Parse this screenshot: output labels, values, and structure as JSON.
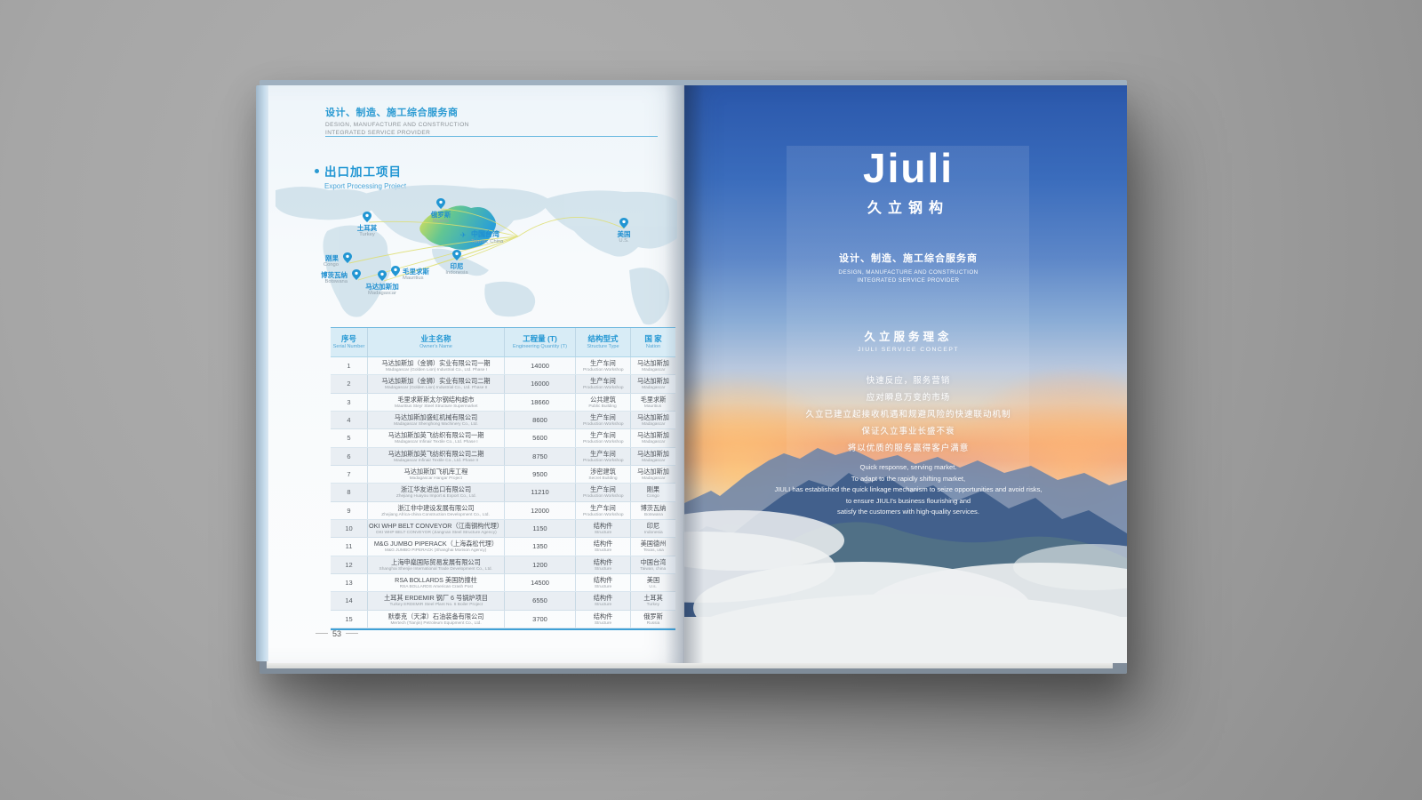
{
  "left_page": {
    "header": {
      "cn": "设计、制造、施工综合服务商",
      "en_line1": "DESIGN, MANUFACTURE AND CONSTRUCTION",
      "en_line2": "INTEGRATED SERVICE PROVIDER"
    },
    "section": {
      "cn": "出口加工项目",
      "en": "Export Processing Project"
    },
    "map": {
      "locations": [
        {
          "id": "russia",
          "cn": "俄罗斯",
          "en": "Russia"
        },
        {
          "id": "turkey",
          "cn": "土耳其",
          "en": "Turkey"
        },
        {
          "id": "taiwan",
          "cn": "中国台湾",
          "en": "Taiwan, China"
        },
        {
          "id": "us",
          "cn": "美国",
          "en": "U.S."
        },
        {
          "id": "congo",
          "cn": "刚果",
          "en": "Congo"
        },
        {
          "id": "botswana",
          "cn": "博茨瓦纳",
          "en": "Botswana"
        },
        {
          "id": "madagascar",
          "cn": "马达加斯加",
          "en": "Madagascar"
        },
        {
          "id": "mauritius",
          "cn": "毛里求斯",
          "en": "Mauritius"
        },
        {
          "id": "indonesia",
          "cn": "印尼",
          "en": "Indonesia"
        }
      ]
    },
    "table": {
      "headers": [
        {
          "cn": "序号",
          "en": "Serial Number"
        },
        {
          "cn": "业主名称",
          "en": "Owner's Name"
        },
        {
          "cn": "工程量 (T)",
          "en": "Engineering Quantity (T)"
        },
        {
          "cn": "结构型式",
          "en": "Structure Type"
        },
        {
          "cn": "国 家",
          "en": "Nation"
        }
      ],
      "rows": [
        {
          "no": "1",
          "owner_cn": "马达加斯加（金狮）实业有限公司一期",
          "owner_en": "Madagascar (Golden Lion) Industrial Co., Ltd. Phase I",
          "qty": "14000",
          "type_cn": "生产车间",
          "type_en": "Production Workshop",
          "nation_cn": "马达加斯加",
          "nation_en": "Madagascar"
        },
        {
          "no": "2",
          "owner_cn": "马达加斯加（金狮）实业有限公司二期",
          "owner_en": "Madagascar (Golden Lion) Industrial Co., Ltd. Phase II",
          "qty": "16000",
          "type_cn": "生产车间",
          "type_en": "Production Workshop",
          "nation_cn": "马达加斯加",
          "nation_en": "Madagascar"
        },
        {
          "no": "3",
          "owner_cn": "毛里求斯斯太尔钢结构超市",
          "owner_en": "Mauritius Steyr Steel Structure Supermarket",
          "qty": "18660",
          "type_cn": "公共建筑",
          "type_en": "Public Building",
          "nation_cn": "毛里求斯",
          "nation_en": "Mauritius"
        },
        {
          "no": "4",
          "owner_cn": "马达加斯加盛虹机械有限公司",
          "owner_en": "Madagascar Shenghong Machinery Co., Ltd.",
          "qty": "8600",
          "type_cn": "生产车间",
          "type_en": "Production Workshop",
          "nation_cn": "马达加斯加",
          "nation_en": "Madagascar"
        },
        {
          "no": "5",
          "owner_cn": "马达加斯加英飞纺织有限公司一期",
          "owner_en": "Madagascar Infinair Textile Co., Ltd. Phase I",
          "qty": "5600",
          "type_cn": "生产车间",
          "type_en": "Production Workshop",
          "nation_cn": "马达加斯加",
          "nation_en": "Madagascar"
        },
        {
          "no": "6",
          "owner_cn": "马达加斯加英飞纺织有限公司二期",
          "owner_en": "Madagascar Infinair Textile Co., Ltd. Phase II",
          "qty": "8750",
          "type_cn": "生产车间",
          "type_en": "Production Workshop",
          "nation_cn": "马达加斯加",
          "nation_en": "Madagascar"
        },
        {
          "no": "7",
          "owner_cn": "马达加斯加飞机库工程",
          "owner_en": "Madagascar Hangar Project",
          "qty": "9500",
          "type_cn": "涉密建筑",
          "type_en": "Secret Building",
          "nation_cn": "马达加斯加",
          "nation_en": "Madagascar"
        },
        {
          "no": "8",
          "owner_cn": "浙江华友进出口有限公司",
          "owner_en": "Zhejiang Huayou Import & Export Co., Ltd.",
          "qty": "11210",
          "type_cn": "生产车间",
          "type_en": "Production Workshop",
          "nation_cn": "刚果",
          "nation_en": "Congo"
        },
        {
          "no": "9",
          "owner_cn": "浙江非中建设发展有限公司",
          "owner_en": "Zhejiang Africa-china Construction Development Co., Ltd.",
          "qty": "12000",
          "type_cn": "生产车间",
          "type_en": "Production Workshop",
          "nation_cn": "博茨瓦纳",
          "nation_en": "Botswana"
        },
        {
          "no": "10",
          "owner_cn": "OKI WHP BELT CONVEYOR（江南钢构代理）",
          "owner_en": "OKI WHP BELT CONVEYOR (Jiangnan Steel Structure Agency)",
          "qty": "1150",
          "type_cn": "结构件",
          "type_en": "Structure",
          "nation_cn": "印尼",
          "nation_en": "Indonesia"
        },
        {
          "no": "11",
          "owner_cn": "M&G JUMBO PIPERACK（上海森松代理）",
          "owner_en": "M&G JUMBO PIPERACK (Shanghai Morison Agency)",
          "qty": "1350",
          "type_cn": "结构件",
          "type_en": "Structure",
          "nation_cn": "美国德州",
          "nation_en": "Texas, usa"
        },
        {
          "no": "12",
          "owner_cn": "上海申燊国际贸易发展有限公司",
          "owner_en": "Shanghai Shenjie International Trade Development Co., Ltd.",
          "qty": "1200",
          "type_cn": "结构件",
          "type_en": "Structure",
          "nation_cn": "中国台湾",
          "nation_en": "Taiwan, china"
        },
        {
          "no": "13",
          "owner_cn": "RSA BOLLARDS 美国防撞柱",
          "owner_en": "RSA BOLLARDS American Crash Post",
          "qty": "14500",
          "type_cn": "结构件",
          "type_en": "Structure",
          "nation_cn": "美国",
          "nation_en": "U.s."
        },
        {
          "no": "14",
          "owner_cn": "土耳其 ERDEMIR 钢厂 6 号锅炉项目",
          "owner_en": "Turkey ERDEMIR Steel Plant No. 6 Boiler Project",
          "qty": "6550",
          "type_cn": "结构件",
          "type_en": "Structure",
          "nation_cn": "土耳其",
          "nation_en": "Turkey"
        },
        {
          "no": "15",
          "owner_cn": "默泰克（天津）石油装备有限公司",
          "owner_en": "Mertech (Tianjin) Petroleum Equipment Co., Ltd.",
          "qty": "3700",
          "type_cn": "结构件",
          "type_en": "Structure",
          "nation_cn": "俄罗斯",
          "nation_en": "Russia"
        }
      ]
    },
    "page_number": "53"
  },
  "right_page": {
    "logo": {
      "wordmark": "Jiuli",
      "cn": "久立钢构"
    },
    "tagline": {
      "cn": "设计、制造、施工综合服务商",
      "en_line1": "DESIGN, MANUFACTURE AND CONSTRUCTION",
      "en_line2": "INTEGRATED SERVICE PROVIDER"
    },
    "concept": {
      "title_cn": "久立服务理念",
      "title_en": "JIULI SERVICE CONCEPT",
      "lines_cn": [
        "快速反应，服务营销",
        "应对瞬息万变的市场",
        "久立已建立起接收机遇和规避风险的快速联动机制",
        "保证久立事业长盛不衰",
        "将以优质的服务赢得客户满意"
      ],
      "lines_en": [
        "Quick response, serving market.",
        "To adapt to the rapidly shifting market,",
        "JIULI has established the quick linkage mechanism to seize opportunities and avoid risks,",
        "to ensure JIULI's business flourishing and",
        "satisfy the customers with high-quality services."
      ]
    }
  },
  "colors": {
    "accent_blue": "#2196d3",
    "map_highlight_yellow": "#e8e34a",
    "map_highlight_teal": "#35b4a0",
    "sunset_orange": "#f3a873",
    "sky_blue": "#2a57ab"
  }
}
